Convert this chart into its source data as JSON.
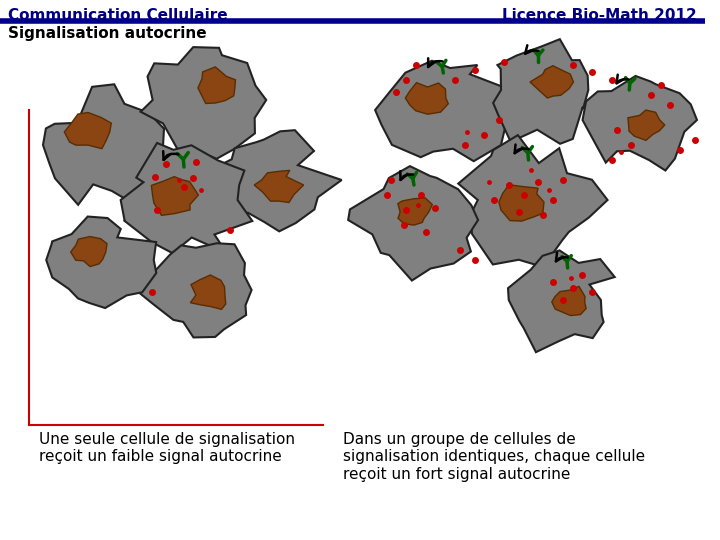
{
  "title_left": "Communication Cellulaire",
  "title_right": "Licence Bio-Math 2012",
  "subtitle": "Signalisation autocrine",
  "caption_left": "Une seule cellule de signalisation\nreçoit un faible signal autocrine",
  "caption_right": "Dans un groupe de cellules de\nsignalisation identiques, chaque cellule\nreçoit un fort signal autocrine",
  "bg_color": "#ffffff",
  "header_line_color": "#00008B",
  "title_color": "#000080",
  "cell_fill": "#808080",
  "cell_edge": "#222222",
  "nucleus_fill": "#8B4513",
  "receptor_color": "#006400",
  "signal_color": "#CC0000",
  "arrow_color": "#000000",
  "axis_color": "#CC0000"
}
